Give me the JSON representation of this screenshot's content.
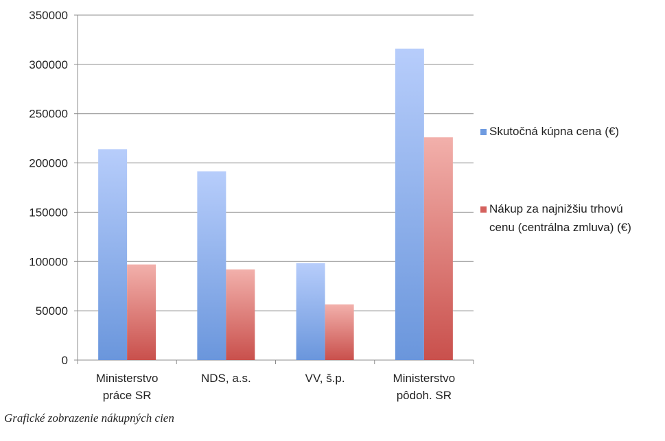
{
  "caption": "Grafické zobrazenie nákupných cien",
  "chart_data": {
    "type": "bar",
    "categories": [
      [
        "Ministerstvo",
        "práce SR"
      ],
      [
        "NDS, a.s."
      ],
      [
        "VV, š.p."
      ],
      [
        "Ministerstvo",
        "pôdoh. SR"
      ]
    ],
    "series": [
      {
        "name": "Skutočná kúpna cena (€)",
        "values": [
          214000,
          191500,
          98500,
          316000
        ],
        "color_top": "#b7cdfb",
        "color_bottom": "#6a96dc",
        "legend_color": "#6f9be0"
      },
      {
        "name": "Nákup za najnižšiu trhovú cenu (centrálna zmluva) (€)",
        "values": [
          97000,
          92000,
          56500,
          226000
        ],
        "color_top": "#f2b0ab",
        "color_bottom": "#c9504c",
        "legend_color": "#d4615d"
      }
    ],
    "legend_lines": [
      [
        "Skutočná kúpna cena (€)"
      ],
      [
        "Nákup za najnižšiu trhovú",
        "cenu (centrálna zmluva) (€)"
      ]
    ],
    "yticks": [
      "350000",
      "300000",
      "250000",
      "200000",
      "150000",
      "100000",
      "50000",
      "0"
    ],
    "ylim": [
      0,
      350000
    ],
    "grid": true,
    "legend_position": "right"
  }
}
